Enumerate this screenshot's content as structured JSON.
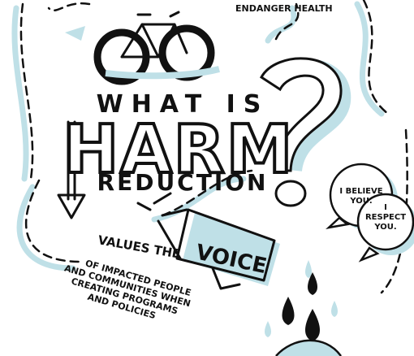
{
  "header": {
    "top_note": "ENDANGER HEALTH",
    "title_line1": "WHAT IS",
    "title_line2": "HARM",
    "title_line3": "REDUCTION"
  },
  "megaphone": {
    "lead": "VALUES THE",
    "keyword": "VOICE",
    "caption_lines": [
      "OF IMPACTED PEOPLE",
      "AND COMMUNITIES WHEN",
      "CREATING PROGRAMS",
      "AND POLICIES"
    ]
  },
  "bubbles": [
    {
      "lines": [
        "I BELIEVE",
        "YOU."
      ]
    },
    {
      "lines": [
        "I",
        "RESPECT",
        "YOU."
      ]
    }
  ]
}
